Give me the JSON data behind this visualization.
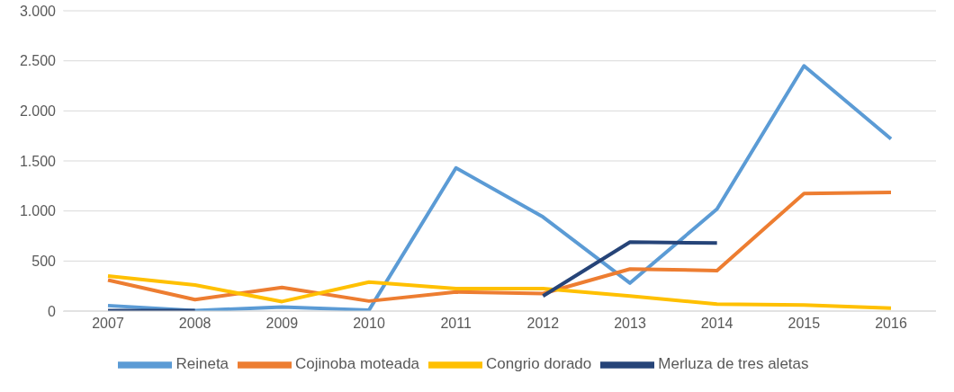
{
  "chart_data": {
    "type": "line",
    "categories": [
      "2007",
      "2008",
      "2009",
      "2010",
      "2011",
      "2012",
      "2013",
      "2014",
      "2015",
      "2016"
    ],
    "series": [
      {
        "name": "Reineta",
        "color": "#5b9bd5",
        "values": [
          55,
          5,
          40,
          10,
          1430,
          940,
          280,
          1020,
          2450,
          1720
        ]
      },
      {
        "name": "Cojinoba moteada",
        "color": "#ed7d31",
        "values": [
          310,
          115,
          235,
          100,
          190,
          175,
          420,
          405,
          1175,
          1185
        ]
      },
      {
        "name": "Congrio dorado",
        "color": "#ffc000",
        "values": [
          350,
          260,
          95,
          290,
          225,
          225,
          150,
          70,
          60,
          30
        ]
      },
      {
        "name": "Merluza de tres aletas",
        "color": "#264478",
        "values": [
          5,
          5,
          null,
          null,
          null,
          150,
          690,
          680,
          null,
          null
        ]
      }
    ],
    "ylim": [
      0,
      3000
    ],
    "yticks": [
      {
        "value": 0,
        "label": "0"
      },
      {
        "value": 500,
        "label": "500"
      },
      {
        "value": 1000,
        "label": "1.000"
      },
      {
        "value": 1500,
        "label": "1.500"
      },
      {
        "value": 2000,
        "label": "2.000"
      },
      {
        "value": 2500,
        "label": "2.500"
      },
      {
        "value": 3000,
        "label": "3.000"
      }
    ],
    "grid": "y",
    "legend": "bottom",
    "marker": "none",
    "line_style": "solid"
  }
}
